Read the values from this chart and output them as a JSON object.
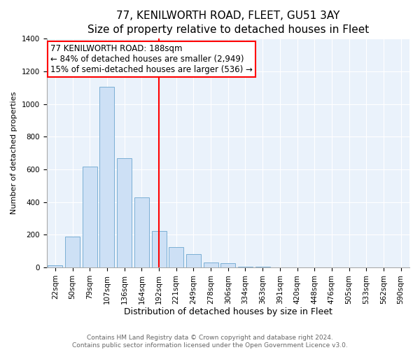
{
  "title": "77, KENILWORTH ROAD, FLEET, GU51 3AY",
  "subtitle": "Size of property relative to detached houses in Fleet",
  "xlabel": "Distribution of detached houses by size in Fleet",
  "ylabel": "Number of detached properties",
  "bar_labels": [
    "22sqm",
    "50sqm",
    "79sqm",
    "107sqm",
    "136sqm",
    "164sqm",
    "192sqm",
    "221sqm",
    "249sqm",
    "278sqm",
    "306sqm",
    "334sqm",
    "363sqm",
    "391sqm",
    "420sqm",
    "448sqm",
    "476sqm",
    "505sqm",
    "533sqm",
    "562sqm",
    "590sqm"
  ],
  "bar_values": [
    15,
    190,
    615,
    1105,
    670,
    430,
    225,
    125,
    80,
    30,
    25,
    5,
    5,
    2,
    0,
    0,
    0,
    0,
    0,
    0,
    0
  ],
  "bar_color": "#cde0f5",
  "bar_edge_color": "#7bafd4",
  "vline_x": 6,
  "vline_color": "red",
  "annotation_title": "77 KENILWORTH ROAD: 188sqm",
  "annotation_line1": "← 84% of detached houses are smaller (2,949)",
  "annotation_line2": "15% of semi-detached houses are larger (536) →",
  "annotation_box_color": "white",
  "annotation_box_edgecolor": "red",
  "ylim": [
    0,
    1400
  ],
  "yticks": [
    0,
    200,
    400,
    600,
    800,
    1000,
    1200,
    1400
  ],
  "footer_line1": "Contains HM Land Registry data © Crown copyright and database right 2024.",
  "footer_line2": "Contains public sector information licensed under the Open Government Licence v3.0.",
  "title_fontsize": 11,
  "subtitle_fontsize": 9.5,
  "xlabel_fontsize": 9,
  "ylabel_fontsize": 8,
  "tick_fontsize": 7.5,
  "annotation_fontsize": 8.5,
  "footer_fontsize": 6.5,
  "bg_color": "#eaf2fb"
}
